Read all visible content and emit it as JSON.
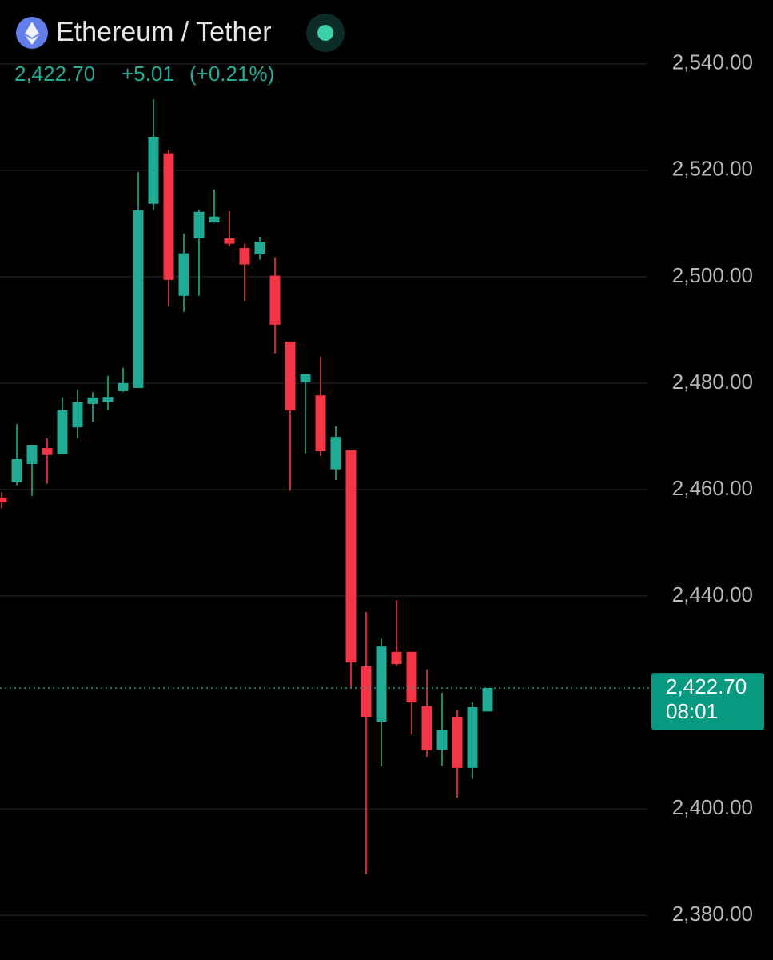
{
  "header": {
    "title": "Ethereum / Tether",
    "price": "2,422.70",
    "change": "+5.01",
    "change_percent": "(+0.21%)"
  },
  "chart_data": {
    "type": "candlestick",
    "up_color": "#22ab94",
    "down_color": "#f23645",
    "ylim": [
      2371.6,
      2552
    ],
    "yticks": [
      {
        "value": 2540,
        "label": "2,540.00"
      },
      {
        "value": 2520,
        "label": "2,520.00"
      },
      {
        "value": 2500,
        "label": "2,500.00"
      },
      {
        "value": 2480,
        "label": "2,480.00"
      },
      {
        "value": 2460,
        "label": "2,460.00"
      },
      {
        "value": 2440,
        "label": "2,440.00"
      },
      {
        "value": 2400,
        "label": "2,400.00"
      },
      {
        "value": 2380,
        "label": "2,380.00"
      }
    ],
    "grid": true,
    "open": [
      2458.5,
      2461.4,
      2464.8,
      2467.8,
      2466.6,
      2471.7,
      2476.1,
      2476.5,
      2478.5,
      2479.1,
      2513.7,
      2523.2,
      2496.4,
      2507.2,
      2510.2,
      2507.2,
      2505.4,
      2504.2,
      2500.2,
      2487.8,
      2480.2,
      2477.7,
      2463.8,
      2467.4,
      2426.8,
      2416.4,
      2429.5,
      2429.5,
      2419.3,
      2411.1,
      2417.3,
      2407.7,
      2418.3
    ],
    "high": [
      2459.5,
      2472.3,
      2468.4,
      2469.6,
      2477.3,
      2478.8,
      2478.3,
      2481.4,
      2482.9,
      2519.7,
      2533.4,
      2523.8,
      2508.1,
      2512.6,
      2516.4,
      2512.3,
      2506.2,
      2507.5,
      2503.6,
      2487.8,
      2481.7,
      2485.0,
      2471.9,
      2467.4,
      2437.0,
      2432.0,
      2439.2,
      2429.5,
      2426.2,
      2421.8,
      2418.5,
      2420.0,
      2422.7
    ],
    "low": [
      2456.5,
      2460.8,
      2458.8,
      2461.1,
      2466.6,
      2469.6,
      2472.6,
      2475.0,
      2478.3,
      2479.1,
      2512.6,
      2494.4,
      2493.4,
      2496.4,
      2510.1,
      2505.7,
      2495.5,
      2503.2,
      2485.6,
      2459.8,
      2466.8,
      2466.3,
      2461.8,
      2422.7,
      2387.7,
      2408.0,
      2426.9,
      2414.0,
      2409.8,
      2408.1,
      2402.1,
      2405.6,
      2418.3
    ],
    "close": [
      2457.6,
      2465.7,
      2468.4,
      2466.5,
      2474.9,
      2476.4,
      2477.3,
      2477.4,
      2480.0,
      2512.5,
      2526.3,
      2499.4,
      2504.4,
      2512.2,
      2511.3,
      2506.2,
      2502.3,
      2506.6,
      2491.0,
      2474.9,
      2481.7,
      2467.2,
      2469.9,
      2427.5,
      2417.3,
      2430.5,
      2427.2,
      2420.0,
      2411.0,
      2414.9,
      2407.7,
      2419.1,
      2422.7
    ],
    "last_price": {
      "value": 2422.7,
      "label": "2,422.70"
    },
    "countdown": "08:01"
  }
}
